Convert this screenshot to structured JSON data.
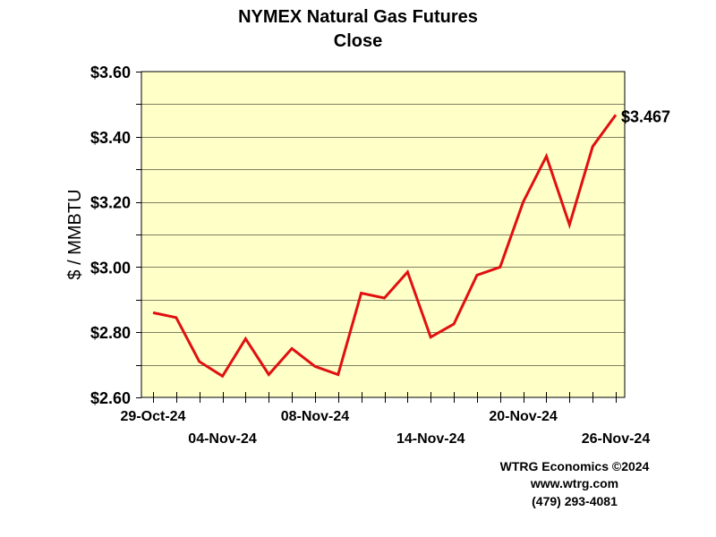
{
  "chart_data": {
    "type": "line",
    "title": "NYMEX Natural Gas Futures",
    "subtitle": "Close",
    "ylabel": "$ / MMBTU",
    "xlabel": "",
    "ylim": [
      2.6,
      3.6
    ],
    "y_ticks": [
      "$2.60",
      "$2.80",
      "$3.00",
      "$3.20",
      "$3.40",
      "$3.60"
    ],
    "y_tick_values": [
      2.6,
      2.8,
      3.0,
      3.2,
      3.4,
      3.6
    ],
    "grid": true,
    "x_tick_labels_row1": [
      {
        "index": 0,
        "label": "29-Oct-24"
      },
      {
        "index": 7,
        "label": "08-Nov-24"
      },
      {
        "index": 16,
        "label": "20-Nov-24"
      }
    ],
    "x_tick_labels_row2": [
      {
        "index": 3,
        "label": "04-Nov-24"
      },
      {
        "index": 12,
        "label": "14-Nov-24"
      },
      {
        "index": 20,
        "label": "26-Nov-24"
      }
    ],
    "series": [
      {
        "color": "#e01010",
        "values": [
          2.86,
          2.845,
          2.71,
          2.665,
          2.78,
          2.67,
          2.75,
          2.695,
          2.67,
          2.92,
          2.905,
          2.985,
          2.785,
          2.825,
          2.975,
          3.0,
          3.2,
          3.34,
          3.13,
          3.37,
          3.467
        ]
      }
    ],
    "last_value_label": "$3.467",
    "plot_background": "#ffffc8"
  },
  "credits": {
    "line1": "WTRG Economics ©2024",
    "line2": "www.wtrg.com",
    "line3": "(479) 293-4081"
  }
}
